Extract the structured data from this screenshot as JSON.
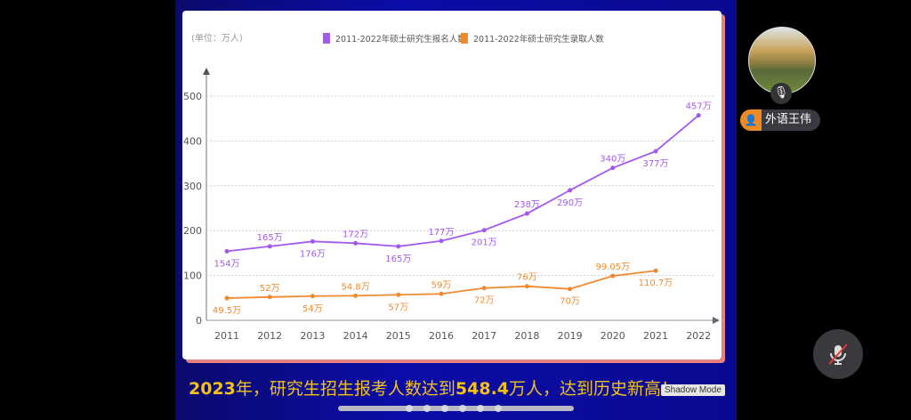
{
  "chart_data": {
    "type": "line",
    "unit_label": "(单位：万人)",
    "x": [
      "2011",
      "2012",
      "2013",
      "2014",
      "2015",
      "2016",
      "2017",
      "2018",
      "2019",
      "2020",
      "2021",
      "2022"
    ],
    "yticks": [
      0,
      100,
      200,
      300,
      400,
      500
    ],
    "ylim": [
      0,
      520
    ],
    "grid": true,
    "legend": "top",
    "series": [
      {
        "name": "2011-2022年硕士研究生报名人数",
        "color": "#a259f0",
        "values": [
          154,
          165,
          176,
          172,
          165,
          177,
          201,
          238,
          290,
          340,
          377,
          457
        ],
        "labels": [
          "154万",
          "165万",
          "176万",
          "172万",
          "165万",
          "177万",
          "201万",
          "238万",
          "290万",
          "340万",
          "377万",
          "457万"
        ]
      },
      {
        "name": "2011-2022年硕士研究生录取人数",
        "color": "#f08a30",
        "values": [
          49.5,
          52,
          54,
          54.8,
          57,
          59,
          72,
          76,
          70,
          99.05,
          110.7,
          null
        ],
        "labels": [
          "49.5万",
          "52万",
          "54万",
          "54.8万",
          "57万",
          "59万",
          "72万",
          "76万",
          "70万",
          "99.05万",
          "110.7万",
          null
        ]
      }
    ]
  },
  "caption": {
    "year": "2023",
    "p1": "年，研究生招生报考人数达到",
    "num": "548.4",
    "p2": "万人，达到历史新高！"
  },
  "shadow_mode": "Shadow Mode",
  "participant": {
    "name": "外语王伟",
    "icon": "user-icon",
    "mic_icon": "microphone-icon"
  },
  "controls": {
    "mute_icon": "microphone-off-icon"
  },
  "pager": {
    "pages": 6
  }
}
